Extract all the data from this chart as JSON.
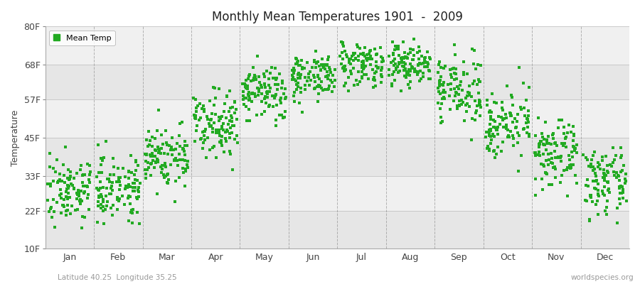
{
  "title": "Monthly Mean Temperatures 1901  -  2009",
  "ylabel": "Temperature",
  "yticks": [
    10,
    22,
    33,
    45,
    57,
    68,
    80
  ],
  "ytick_labels": [
    "10F",
    "22F",
    "33F",
    "45F",
    "57F",
    "68F",
    "80F"
  ],
  "ylim": [
    10,
    80
  ],
  "months": [
    "Jan",
    "Feb",
    "Mar",
    "Apr",
    "May",
    "Jun",
    "Jul",
    "Aug",
    "Sep",
    "Oct",
    "Nov",
    "Dec"
  ],
  "dot_color": "#22AA22",
  "dot_size": 6,
  "bg_color": "#ffffff",
  "plot_bg_color": "#ffffff",
  "band_color_a": "#f0f0f0",
  "band_color_b": "#e6e6e6",
  "grid_color": "#888888",
  "subtitle_left": "Latitude 40.25  Longitude 35.25",
  "subtitle_right": "worldspecies.org",
  "legend_label": "Mean Temp",
  "monthly_means": [
    28.5,
    29.5,
    39.0,
    50.0,
    59.0,
    64.5,
    68.5,
    68.0,
    60.0,
    49.5,
    39.5,
    31.0
  ],
  "monthly_std": [
    5.0,
    5.0,
    5.0,
    5.0,
    4.5,
    3.5,
    3.5,
    3.5,
    5.0,
    5.0,
    5.0,
    5.0
  ],
  "n_points": 109
}
